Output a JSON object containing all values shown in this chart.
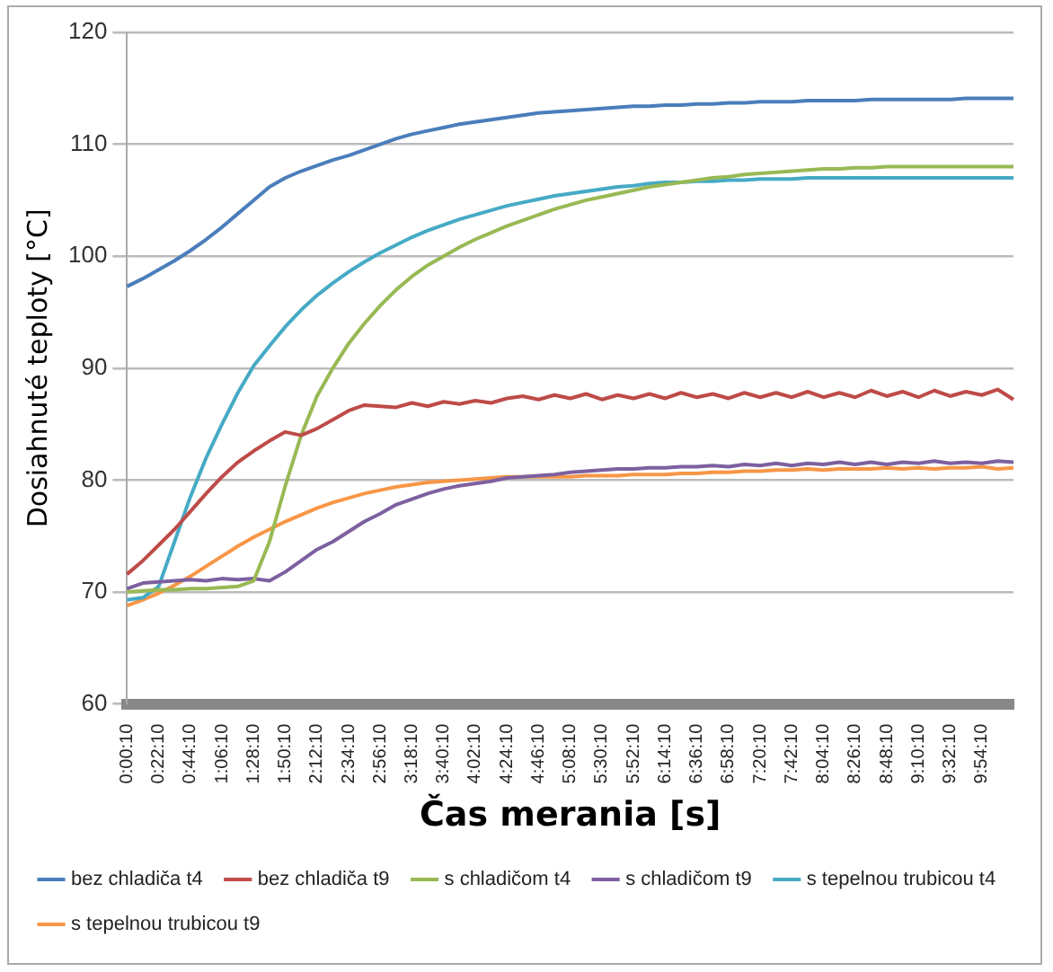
{
  "chart_data": {
    "type": "line",
    "xlabel": "Čas merania [s]",
    "ylabel": "Dosiahnuté teploty [°C]",
    "categories": [
      "0:00:10",
      null,
      "0:22:10",
      null,
      "0:44:10",
      null,
      "1:06:10",
      null,
      "1:28:10",
      null,
      "1:50:10",
      null,
      "2:12:10",
      null,
      "2:34:10",
      null,
      "2:56:10",
      null,
      "3:18:10",
      null,
      "3:40:10",
      null,
      "4:02:10",
      null,
      "4:24:10",
      null,
      "4:46:10",
      null,
      "5:08:10",
      null,
      "5:30:10",
      null,
      "5:52:10",
      null,
      "6:14:10",
      null,
      "6:36:10",
      null,
      "6:58:10",
      null,
      "7:20:10",
      null,
      "7:42:10",
      null,
      "8:04:10",
      null,
      "8:26:10",
      null,
      "8:48:10",
      null,
      "9:10:10",
      null,
      "9:32:10",
      null,
      "9:54:10",
      null,
      null
    ],
    "ylim": [
      60,
      120
    ],
    "yticks": [
      60,
      70,
      80,
      90,
      100,
      110,
      120
    ],
    "grid": "y",
    "legend": "bottom",
    "marker": "none",
    "line_style": "solid",
    "series": [
      {
        "name": "bez chladiča t4",
        "color": "#4a7ebb",
        "values": [
          97.3,
          98.0,
          98.8,
          99.6,
          100.5,
          101.5,
          102.6,
          103.8,
          105.0,
          106.2,
          107.0,
          107.6,
          108.1,
          108.6,
          109.0,
          109.5,
          110.0,
          110.5,
          110.9,
          111.2,
          111.5,
          111.8,
          112.0,
          112.2,
          112.4,
          112.6,
          112.8,
          112.9,
          113.0,
          113.1,
          113.2,
          113.3,
          113.4,
          113.4,
          113.5,
          113.5,
          113.6,
          113.6,
          113.7,
          113.7,
          113.8,
          113.8,
          113.8,
          113.9,
          113.9,
          113.9,
          113.9,
          114.0,
          114.0,
          114.0,
          114.0,
          114.0,
          114.0,
          114.1,
          114.1,
          114.1,
          114.1
        ]
      },
      {
        "name": "bez chladiča t9",
        "color": "#be4b48",
        "values": [
          71.6,
          72.8,
          74.2,
          75.6,
          77.2,
          78.8,
          80.3,
          81.6,
          82.6,
          83.5,
          84.3,
          84.0,
          84.6,
          85.4,
          86.2,
          86.7,
          86.6,
          86.5,
          86.9,
          86.6,
          87.0,
          86.8,
          87.1,
          86.9,
          87.3,
          87.5,
          87.2,
          87.6,
          87.3,
          87.7,
          87.2,
          87.6,
          87.3,
          87.7,
          87.3,
          87.8,
          87.4,
          87.7,
          87.3,
          87.8,
          87.4,
          87.8,
          87.4,
          87.9,
          87.4,
          87.8,
          87.4,
          88.0,
          87.5,
          87.9,
          87.4,
          88.0,
          87.5,
          87.9,
          87.6,
          88.1,
          87.2
        ]
      },
      {
        "name": "s chladičom t4",
        "color": "#98b954",
        "values": [
          70.0,
          70.1,
          70.2,
          70.2,
          70.3,
          70.3,
          70.4,
          70.5,
          71.0,
          74.5,
          79.5,
          84.0,
          87.5,
          90.0,
          92.2,
          94.0,
          95.6,
          97.0,
          98.2,
          99.2,
          100.0,
          100.8,
          101.5,
          102.1,
          102.7,
          103.2,
          103.7,
          104.2,
          104.6,
          105.0,
          105.3,
          105.6,
          105.9,
          106.2,
          106.4,
          106.6,
          106.8,
          107.0,
          107.1,
          107.3,
          107.4,
          107.5,
          107.6,
          107.7,
          107.8,
          107.8,
          107.9,
          107.9,
          108.0,
          108.0,
          108.0,
          108.0,
          108.0,
          108.0,
          108.0,
          108.0,
          108.0
        ]
      },
      {
        "name": "s chladičom t9",
        "color": "#7d60a0",
        "values": [
          70.3,
          70.8,
          70.9,
          71.0,
          71.1,
          71.0,
          71.2,
          71.1,
          71.2,
          71.0,
          71.8,
          72.8,
          73.8,
          74.5,
          75.4,
          76.3,
          77.0,
          77.8,
          78.3,
          78.8,
          79.2,
          79.5,
          79.7,
          79.9,
          80.2,
          80.3,
          80.4,
          80.5,
          80.7,
          80.8,
          80.9,
          81.0,
          81.0,
          81.1,
          81.1,
          81.2,
          81.2,
          81.3,
          81.2,
          81.4,
          81.3,
          81.5,
          81.3,
          81.5,
          81.4,
          81.6,
          81.4,
          81.6,
          81.4,
          81.6,
          81.5,
          81.7,
          81.5,
          81.6,
          81.5,
          81.7,
          81.6
        ]
      },
      {
        "name": "s tepelnou trubicou t4",
        "color": "#46aac5",
        "values": [
          69.3,
          69.5,
          70.5,
          74.5,
          78.5,
          82.0,
          85.0,
          87.8,
          90.2,
          92.0,
          93.7,
          95.2,
          96.5,
          97.6,
          98.6,
          99.5,
          100.3,
          101.0,
          101.7,
          102.3,
          102.8,
          103.3,
          103.7,
          104.1,
          104.5,
          104.8,
          105.1,
          105.4,
          105.6,
          105.8,
          106.0,
          106.2,
          106.3,
          106.5,
          106.6,
          106.6,
          106.7,
          106.7,
          106.8,
          106.8,
          106.9,
          106.9,
          106.9,
          107.0,
          107.0,
          107.0,
          107.0,
          107.0,
          107.0,
          107.0,
          107.0,
          107.0,
          107.0,
          107.0,
          107.0,
          107.0,
          107.0
        ]
      },
      {
        "name": "s tepelnou trubicou t9",
        "color": "#f79646",
        "values": [
          68.8,
          69.3,
          69.9,
          70.6,
          71.4,
          72.3,
          73.2,
          74.1,
          74.9,
          75.6,
          76.3,
          76.9,
          77.5,
          78.0,
          78.4,
          78.8,
          79.1,
          79.4,
          79.6,
          79.8,
          79.9,
          80.0,
          80.1,
          80.2,
          80.3,
          80.3,
          80.3,
          80.3,
          80.3,
          80.4,
          80.4,
          80.4,
          80.5,
          80.5,
          80.5,
          80.6,
          80.6,
          80.7,
          80.7,
          80.8,
          80.8,
          80.9,
          80.9,
          81.0,
          80.9,
          81.0,
          81.0,
          81.0,
          81.1,
          81.0,
          81.1,
          81.0,
          81.1,
          81.1,
          81.2,
          81.0,
          81.1
        ]
      }
    ]
  }
}
